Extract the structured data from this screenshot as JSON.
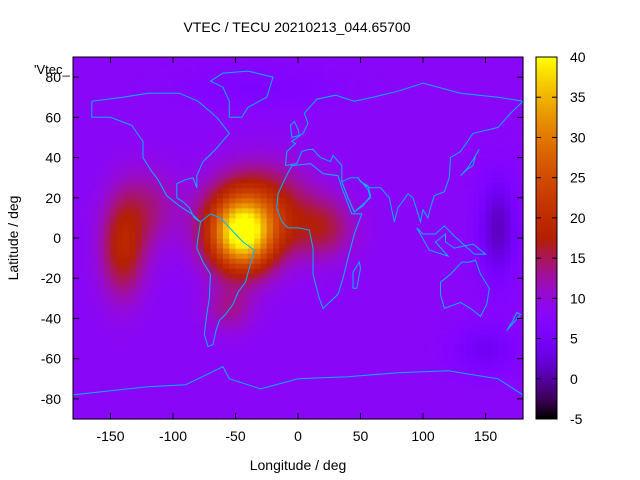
{
  "chart_data": {
    "type": "heatmap",
    "title": "VTEC / TECU 20210213_044.65700",
    "xlabel": "Longitude / deg",
    "ylabel": "Latitude / deg",
    "xlim": [
      -180,
      180
    ],
    "ylim": [
      -90,
      90
    ],
    "x_ticks": [
      -150,
      -100,
      -50,
      0,
      50,
      100,
      150
    ],
    "y_ticks": [
      -80,
      -60,
      -40,
      -20,
      0,
      20,
      40,
      60,
      80
    ],
    "colorbar": {
      "range": [
        -5,
        40
      ],
      "ticks": [
        -5,
        0,
        5,
        10,
        15,
        20,
        25,
        30,
        35,
        40
      ],
      "palette": "black-purple-red-orange-yellow"
    },
    "plot_key_label": "'Vtec_",
    "background_value": 8,
    "blobs": [
      {
        "lon": -45,
        "lat": 2,
        "slon": 26,
        "slat": 18,
        "amp": 30
      },
      {
        "lon": -30,
        "lat": 15,
        "slon": 40,
        "slat": 22,
        "amp": 10
      },
      {
        "lon": -140,
        "lat": -5,
        "slon": 18,
        "slat": 25,
        "amp": 10
      },
      {
        "lon": -120,
        "lat": 15,
        "slon": 25,
        "slat": 20,
        "amp": 5
      },
      {
        "lon": 20,
        "lat": 5,
        "slon": 25,
        "slat": 15,
        "amp": 7
      },
      {
        "lon": -55,
        "lat": -35,
        "slon": 20,
        "slat": 12,
        "amp": 5
      },
      {
        "lon": 160,
        "lat": 5,
        "slon": 15,
        "slat": 25,
        "amp": -7
      },
      {
        "lon": 150,
        "lat": -55,
        "slon": 25,
        "slat": 12,
        "amp": -4
      },
      {
        "lon": -30,
        "lat": 75,
        "slon": 60,
        "slat": 10,
        "amp": -2
      }
    ],
    "coastline_color": "#00b4ff"
  }
}
